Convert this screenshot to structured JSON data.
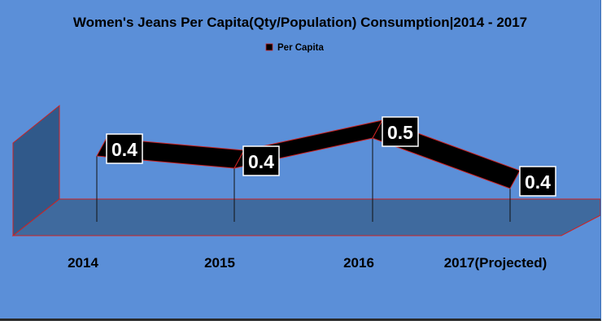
{
  "chart_data": {
    "type": "line",
    "title": "Women's Jeans Per Capita(Qty/Population) Consumption|2014 - 2017",
    "categories": [
      "2014",
      "2015",
      "2016",
      "2017(Projected)"
    ],
    "series": [
      {
        "name": "Per Capita",
        "values": [
          0.4,
          0.4,
          0.5,
          0.4
        ],
        "labels": [
          "0.4",
          "0.4",
          "0.5",
          "0.4"
        ]
      }
    ],
    "legend_position": "top",
    "grid": false,
    "style": "3d ribbon line",
    "colors": {
      "background": "#5b8fd8",
      "ribbon": "#000000",
      "ribbon_edge": "#cc2222",
      "floor": "#3f6a9e",
      "wall": "#30598a",
      "label_bg": "#000000",
      "label_text": "#ffffff"
    }
  }
}
